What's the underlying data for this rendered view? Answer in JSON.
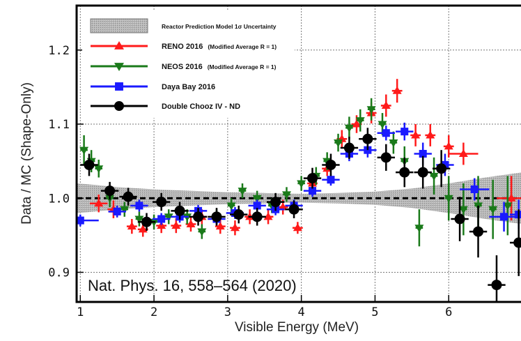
{
  "chart_data": {
    "type": "scatter",
    "ylabel": "Data / MC (Shape-Only)",
    "xlabel": "Visible Energy (MeV)",
    "xlim": [
      0.95,
      7.0
    ],
    "ylim": [
      0.86,
      1.26
    ],
    "xticks": [
      "1",
      "2",
      "3",
      "4",
      "5",
      "6"
    ],
    "yticks": [
      "1.2",
      "1.1",
      "1.0",
      "0.9"
    ],
    "ytick_values": [
      1.2,
      1.1,
      1.0,
      0.9
    ],
    "grid": true,
    "legend_position": "top-left",
    "annotation": "Nat. Phys. 16, 558–564 (2020)",
    "band": {
      "name": "Reactor Prediction Model 1σ Uncertainty",
      "x": [
        0.95,
        1.2,
        1.5,
        2.0,
        2.5,
        3.0,
        3.5,
        4.0,
        4.5,
        5.0,
        5.5,
        6.0,
        6.5,
        7.0
      ],
      "half_width": [
        0.02,
        0.018,
        0.015,
        0.012,
        0.01,
        0.008,
        0.007,
        0.006,
        0.007,
        0.009,
        0.013,
        0.02,
        0.028,
        0.035
      ]
    },
    "series": [
      {
        "name": "RENO 2016",
        "note": "(Modified Average R = 1)",
        "color": "#ff1a1a",
        "marker": "triangle-up",
        "points": [
          [
            1.25,
            0.993,
            0.12,
            0.012
          ],
          [
            1.45,
            0.985,
            0.08,
            0.012
          ],
          [
            1.7,
            0.962,
            0.07,
            0.01
          ],
          [
            1.85,
            0.958,
            0.07,
            0.01
          ],
          [
            2.1,
            0.963,
            0.07,
            0.01
          ],
          [
            2.3,
            0.963,
            0.07,
            0.01
          ],
          [
            2.5,
            0.965,
            0.07,
            0.01
          ],
          [
            2.65,
            0.975,
            0.07,
            0.01
          ],
          [
            2.9,
            0.962,
            0.07,
            0.01
          ],
          [
            3.1,
            0.96,
            0.07,
            0.01
          ],
          [
            3.3,
            0.975,
            0.07,
            0.01
          ],
          [
            3.55,
            0.975,
            0.07,
            0.01
          ],
          [
            3.75,
            0.988,
            0.07,
            0.01
          ],
          [
            3.95,
            0.96,
            0.07,
            0.008
          ],
          [
            4.15,
            1.02,
            0.07,
            0.01
          ],
          [
            4.35,
            1.04,
            0.07,
            0.01
          ],
          [
            4.55,
            1.08,
            0.07,
            0.012
          ],
          [
            4.75,
            1.1,
            0.07,
            0.012
          ],
          [
            4.95,
            1.115,
            0.07,
            0.014
          ],
          [
            5.15,
            1.125,
            0.07,
            0.015
          ],
          [
            5.3,
            1.145,
            0.07,
            0.016
          ],
          [
            5.55,
            1.085,
            0.07,
            0.015
          ],
          [
            5.75,
            1.085,
            0.07,
            0.015
          ],
          [
            6.0,
            1.07,
            0.07,
            0.015
          ],
          [
            6.2,
            1.06,
            0.2,
            0.015
          ],
          [
            6.85,
            1.0,
            0.2,
            0.03
          ]
        ]
      },
      {
        "name": "NEOS 2016",
        "note": "(Modified Average R = 1)",
        "color": "#1a7a1a",
        "marker": "triangle-down",
        "points": [
          [
            1.05,
            1.065,
            0.05,
            0.02
          ],
          [
            1.15,
            1.05,
            0.05,
            0.015
          ],
          [
            1.25,
            1.04,
            0.05,
            0.012
          ],
          [
            1.4,
            1.0,
            0.05,
            0.012
          ],
          [
            1.6,
            0.985,
            0.05,
            0.01
          ],
          [
            1.8,
            0.972,
            0.05,
            0.01
          ],
          [
            2.0,
            0.968,
            0.05,
            0.01
          ],
          [
            2.2,
            0.975,
            0.05,
            0.01
          ],
          [
            2.45,
            0.975,
            0.05,
            0.01
          ],
          [
            2.65,
            0.955,
            0.05,
            0.01
          ],
          [
            2.85,
            0.975,
            0.05,
            0.01
          ],
          [
            3.05,
            0.99,
            0.05,
            0.01
          ],
          [
            3.2,
            1.01,
            0.05,
            0.01
          ],
          [
            3.4,
            1.0,
            0.05,
            0.01
          ],
          [
            3.6,
            0.99,
            0.05,
            0.01
          ],
          [
            3.8,
            1.005,
            0.05,
            0.01
          ],
          [
            4.0,
            1.02,
            0.05,
            0.01
          ],
          [
            4.2,
            1.03,
            0.05,
            0.012
          ],
          [
            4.35,
            1.05,
            0.05,
            0.012
          ],
          [
            4.5,
            1.075,
            0.05,
            0.012
          ],
          [
            4.65,
            1.095,
            0.05,
            0.015
          ],
          [
            4.8,
            1.105,
            0.05,
            0.015
          ],
          [
            4.95,
            1.12,
            0.05,
            0.015
          ],
          [
            5.1,
            1.1,
            0.05,
            0.015
          ],
          [
            5.25,
            1.075,
            0.05,
            0.015
          ],
          [
            5.4,
            1.05,
            0.05,
            0.02
          ],
          [
            5.6,
            0.96,
            0.05,
            0.025
          ],
          [
            5.8,
            1.03,
            0.05,
            0.025
          ],
          [
            6.0,
            1.0,
            0.05,
            0.03
          ],
          [
            6.2,
            0.985,
            0.05,
            0.035
          ],
          [
            6.4,
            0.99,
            0.05,
            0.04
          ],
          [
            6.6,
            0.985,
            0.05,
            0.04
          ],
          [
            6.8,
            0.99,
            0.05,
            0.04
          ]
        ]
      },
      {
        "name": "Daya Bay 2016",
        "color": "#1a1aff",
        "marker": "square",
        "points": [
          [
            1.0,
            0.97,
            0.25,
            0.008
          ],
          [
            1.5,
            0.982,
            0.12,
            0.008
          ],
          [
            1.8,
            0.99,
            0.12,
            0.008
          ],
          [
            2.1,
            0.972,
            0.12,
            0.008
          ],
          [
            2.35,
            0.975,
            0.12,
            0.008
          ],
          [
            2.6,
            0.983,
            0.12,
            0.008
          ],
          [
            2.85,
            0.972,
            0.12,
            0.008
          ],
          [
            3.1,
            0.98,
            0.12,
            0.008
          ],
          [
            3.4,
            0.99,
            0.12,
            0.008
          ],
          [
            3.65,
            0.985,
            0.12,
            0.008
          ],
          [
            3.9,
            0.99,
            0.12,
            0.008
          ],
          [
            4.15,
            1.01,
            0.12,
            0.008
          ],
          [
            4.4,
            1.025,
            0.12,
            0.008
          ],
          [
            4.65,
            1.06,
            0.12,
            0.01
          ],
          [
            4.9,
            1.065,
            0.12,
            0.01
          ],
          [
            5.15,
            1.088,
            0.12,
            0.01
          ],
          [
            5.4,
            1.09,
            0.12,
            0.012
          ],
          [
            5.65,
            1.06,
            0.12,
            0.015
          ],
          [
            5.95,
            1.045,
            0.12,
            0.015
          ],
          [
            6.35,
            1.012,
            0.2,
            0.015
          ],
          [
            6.75,
            0.975,
            0.2,
            0.02
          ],
          [
            6.95,
            0.978,
            0.12,
            0.02
          ]
        ]
      },
      {
        "name": "Double Chooz IV - ND",
        "color": "#000000",
        "marker": "circle",
        "points": [
          [
            1.12,
            1.045,
            0.12,
            0.015
          ],
          [
            1.4,
            1.01,
            0.12,
            0.012
          ],
          [
            1.65,
            1.002,
            0.12,
            0.012
          ],
          [
            1.9,
            0.968,
            0.12,
            0.012
          ],
          [
            2.1,
            0.995,
            0.12,
            0.012
          ],
          [
            2.35,
            0.983,
            0.12,
            0.012
          ],
          [
            2.6,
            0.975,
            0.12,
            0.012
          ],
          [
            2.85,
            0.975,
            0.12,
            0.012
          ],
          [
            3.15,
            0.978,
            0.12,
            0.012
          ],
          [
            3.4,
            0.975,
            0.12,
            0.012
          ],
          [
            3.65,
            0.995,
            0.12,
            0.012
          ],
          [
            3.9,
            0.985,
            0.12,
            0.012
          ],
          [
            4.15,
            1.027,
            0.12,
            0.014
          ],
          [
            4.4,
            1.045,
            0.12,
            0.015
          ],
          [
            4.65,
            1.068,
            0.12,
            0.015
          ],
          [
            4.9,
            1.08,
            0.12,
            0.015
          ],
          [
            5.15,
            1.055,
            0.12,
            0.018
          ],
          [
            5.4,
            1.035,
            0.12,
            0.02
          ],
          [
            5.65,
            1.035,
            0.12,
            0.022
          ],
          [
            5.9,
            1.04,
            0.12,
            0.025
          ],
          [
            6.15,
            0.972,
            0.12,
            0.03
          ],
          [
            6.4,
            0.955,
            0.12,
            0.035
          ],
          [
            6.65,
            0.883,
            0.12,
            0.04
          ],
          [
            6.95,
            0.94,
            0.12,
            0.045
          ]
        ]
      }
    ]
  }
}
